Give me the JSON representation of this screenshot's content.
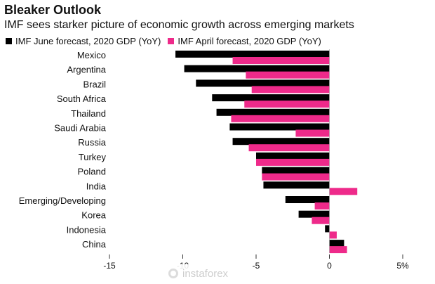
{
  "header": {
    "title": "Bleaker Outlook",
    "subtitle": "IMF sees starker picture of economic growth across emerging markets"
  },
  "watermark": {
    "text": "instaforex"
  },
  "colors": {
    "june": "#000000",
    "april": "#ee2a8a"
  },
  "chart_data": {
    "type": "bar",
    "orientation": "horizontal",
    "categories": [
      "Mexico",
      "Argentina",
      "Brazil",
      "South Africa",
      "Thailand",
      "Saudi Arabia",
      "Russia",
      "Turkey",
      "Poland",
      "India",
      "Emerging/Developing",
      "Korea",
      "Indonesia",
      "China"
    ],
    "series": [
      {
        "name": "IMF June forecast, 2020 GDP (YoY)",
        "color": "#000000",
        "values": [
          -10.5,
          -9.9,
          -9.1,
          -8.0,
          -7.7,
          -6.8,
          -6.6,
          -5.0,
          -4.6,
          -4.5,
          -3.0,
          -2.1,
          -0.3,
          1.0
        ]
      },
      {
        "name": "IMF April forecast, 2020 GDP (YoY)",
        "color": "#ee2a8a",
        "values": [
          -6.6,
          -5.7,
          -5.3,
          -5.8,
          -6.7,
          -2.3,
          -5.5,
          -5.0,
          -4.6,
          1.9,
          -1.0,
          -1.2,
          0.5,
          1.2
        ]
      }
    ],
    "xlim": [
      -15,
      5
    ],
    "xticks": [
      -15,
      -10,
      -5,
      0,
      5
    ],
    "xtick_labels": [
      "-15",
      "-10",
      "-5",
      "0",
      "5%"
    ],
    "legend": "top-left",
    "grid": false
  }
}
